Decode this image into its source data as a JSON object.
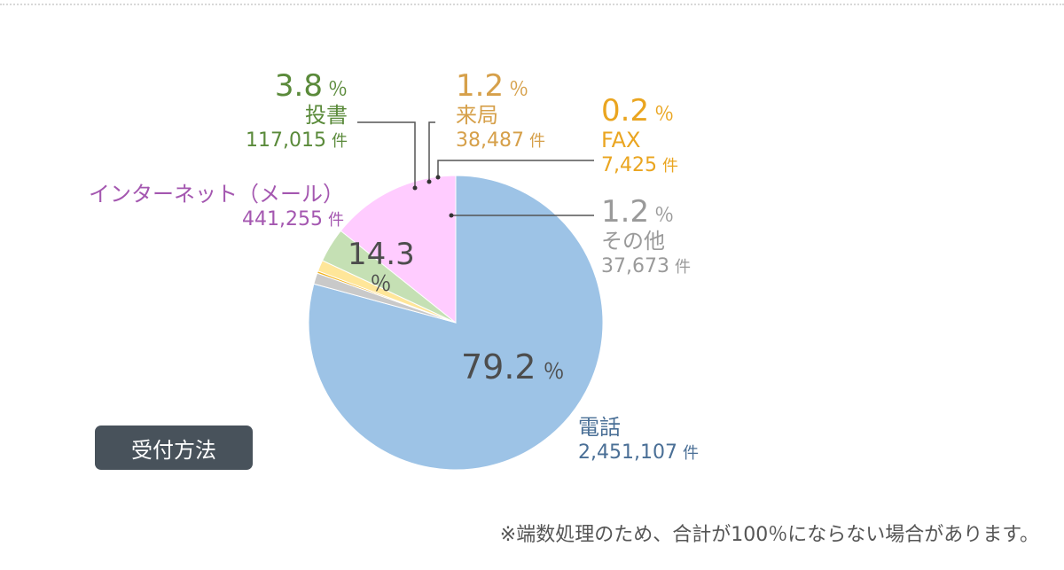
{
  "chart_data": {
    "type": "pie",
    "title": "受付方法",
    "slices": [
      {
        "key": "phone",
        "label": "電話",
        "percent": "79.2",
        "count": "2,451,107",
        "value": 2451107,
        "color": "#9dc3e6",
        "text_color": "#4a6f96"
      },
      {
        "key": "other",
        "label": "その他",
        "percent": "1.2",
        "count": "37,673",
        "value": 37673,
        "color": "#c9c9c9",
        "text_color": "#9a9a9a"
      },
      {
        "key": "fax",
        "label": "FAX",
        "percent": "0.2",
        "count": "7,425",
        "value": 7425,
        "color": "#f2b21b",
        "text_color": "#eaa520"
      },
      {
        "key": "visit",
        "label": "来局",
        "percent": "1.2",
        "count": "38,487",
        "value": 38487,
        "color": "#ffe699",
        "text_color": "#d6a04a"
      },
      {
        "key": "mail",
        "label": "投書",
        "percent": "3.8",
        "count": "117,015",
        "value": 117015,
        "color": "#c5e0b4",
        "text_color": "#5a8a3a"
      },
      {
        "key": "internet",
        "label": "インターネット（メール）",
        "percent": "14.3",
        "count": "441,255",
        "value": 441255,
        "color": "#ffccff",
        "text_color": "#a457b0"
      }
    ],
    "percent_sign": "％",
    "count_unit": "件"
  },
  "legend_box": "受付方法",
  "note": "※端数処理のため、合計が100％にならない場合があります。"
}
